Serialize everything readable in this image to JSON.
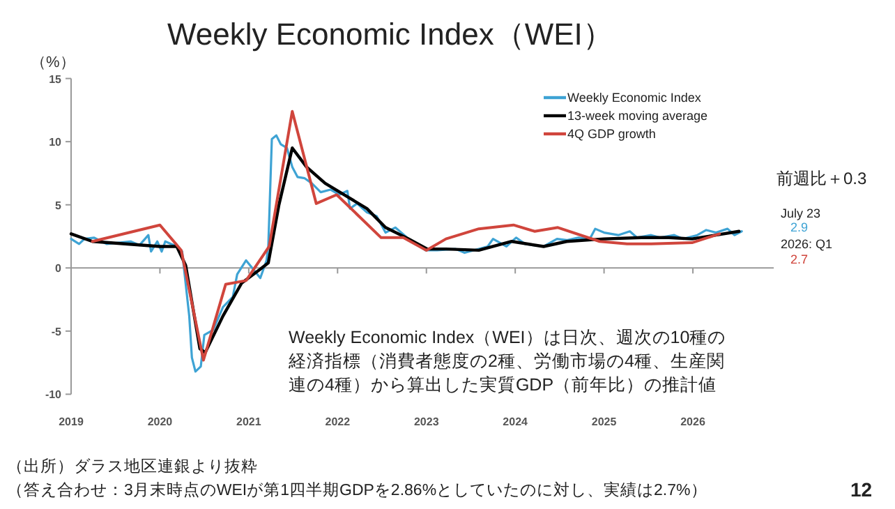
{
  "chart_data": {
    "type": "line",
    "title": "Weekly Economic Index（WEI）",
    "ylabel": "（%）",
    "xlim": [
      2019,
      2026.91
    ],
    "xticks": [
      2019,
      2020,
      2021,
      2022,
      2023,
      2024,
      2025,
      2026
    ],
    "ylim": [
      -10,
      15
    ],
    "yticks": [
      -10,
      -5,
      0,
      5,
      10,
      15
    ],
    "ref_lines": [
      {
        "axis": "y",
        "value": 0,
        "color": "#999999"
      }
    ],
    "legend": "top right",
    "marker": "none",
    "line_style": "solid",
    "series": [
      {
        "name": "Weekly Economic Index",
        "color": "#3ea3d4",
        "x": [
          2019.0,
          2019.09,
          2019.15,
          2019.26,
          2019.4,
          2019.67,
          2019.77,
          2019.87,
          2019.9,
          2019.97,
          2020.02,
          2020.06,
          2020.19,
          2020.25,
          2020.33,
          2020.36,
          2020.4,
          2020.46,
          2020.5,
          2020.6,
          2020.71,
          2020.82,
          2020.87,
          2020.97,
          2021.05,
          2021.13,
          2021.2,
          2021.22,
          2021.26,
          2021.31,
          2021.36,
          2021.43,
          2021.49,
          2021.55,
          2021.63,
          2021.71,
          2021.81,
          2021.92,
          2022.02,
          2022.11,
          2022.14,
          2022.22,
          2022.33,
          2022.44,
          2022.54,
          2022.65,
          2022.8,
          2022.91,
          2022.99,
          2023.12,
          2023.33,
          2023.43,
          2023.69,
          2023.75,
          2023.9,
          2024.01,
          2024.11,
          2024.32,
          2024.47,
          2024.58,
          2024.71,
          2024.84,
          2024.9,
          2025.0,
          2025.16,
          2025.29,
          2025.37,
          2025.53,
          2025.63,
          2025.79,
          2025.89,
          2026.05,
          2026.15,
          2026.26,
          2026.39,
          2026.47,
          2026.55
        ],
        "values": [
          2.3,
          1.9,
          2.3,
          2.4,
          1.9,
          2.1,
          1.8,
          2.6,
          1.3,
          2.1,
          1.3,
          2.1,
          1.7,
          1.3,
          -3.8,
          -7.1,
          -8.2,
          -7.8,
          -5.3,
          -4.9,
          -3.1,
          -2.3,
          -0.5,
          0.6,
          -0.1,
          -0.8,
          0.6,
          1.7,
          10.2,
          10.5,
          9.8,
          9.5,
          8.0,
          7.2,
          7.1,
          6.7,
          6.0,
          6.2,
          5.8,
          6.1,
          4.7,
          5.1,
          4.4,
          4.1,
          2.8,
          3.2,
          2.3,
          1.8,
          1.4,
          1.4,
          1.5,
          1.2,
          1.7,
          2.3,
          1.7,
          2.4,
          1.9,
          1.7,
          2.3,
          2.2,
          2.4,
          2.3,
          3.1,
          2.8,
          2.6,
          2.9,
          2.4,
          2.6,
          2.4,
          2.6,
          2.3,
          2.6,
          3.0,
          2.8,
          3.1,
          2.6,
          2.9
        ]
      },
      {
        "name": "13-week moving average",
        "color": "#000000",
        "x": [
          2019.0,
          2019.24,
          2020.0,
          2020.19,
          2020.29,
          2020.45,
          2020.51,
          2020.71,
          2020.92,
          2021.13,
          2021.22,
          2021.34,
          2021.49,
          2021.65,
          2021.86,
          2022.12,
          2022.33,
          2022.54,
          2022.8,
          2023.01,
          2023.22,
          2023.59,
          2023.96,
          2024.32,
          2024.58,
          2025.0,
          2025.42,
          2025.73,
          2025.99,
          2026.26,
          2026.52
        ],
        "values": [
          2.7,
          2.1,
          1.7,
          1.7,
          0.2,
          -6.4,
          -6.7,
          -3.8,
          -1.2,
          -0.1,
          0.4,
          5.0,
          9.5,
          8.0,
          6.7,
          5.6,
          4.7,
          3.2,
          2.3,
          1.5,
          1.5,
          1.4,
          2.1,
          1.7,
          2.1,
          2.3,
          2.4,
          2.4,
          2.3,
          2.6,
          2.9
        ]
      },
      {
        "name": "4Q GDP growth",
        "color": "#d0453c",
        "x": [
          2019.24,
          2020.0,
          2020.24,
          2020.49,
          2020.74,
          2020.97,
          2021.23,
          2021.49,
          2021.76,
          2021.99,
          2022.49,
          2022.74,
          2023.0,
          2023.22,
          2023.59,
          2023.98,
          2024.22,
          2024.48,
          2024.95,
          2025.26,
          2025.53,
          2025.99,
          2026.3
        ],
        "values": [
          2.1,
          3.4,
          1.4,
          -7.3,
          -1.3,
          -1.0,
          1.7,
          12.4,
          5.1,
          5.8,
          2.4,
          2.4,
          1.4,
          2.3,
          3.1,
          3.4,
          2.9,
          3.2,
          2.1,
          1.9,
          1.9,
          2.0,
          2.7
        ]
      }
    ],
    "annotations": [
      "Weekly Economic Index（WEI）は日次、週次の10種の経済指標（消費者態度の2種、労働市場の4種、生産関連の4種）から算出した実質GDP（前年比）の推計値",
      "（出所）ダラス地区連銀より抜粋",
      "（答え合わせ：3月末時点のWEIが第1四半期GDPを2.86%としていたのに対し、実績は2.7%）",
      "前週比＋0.3",
      "July 23",
      "2.9",
      "2026: Q1",
      "2.7",
      "12"
    ]
  }
}
